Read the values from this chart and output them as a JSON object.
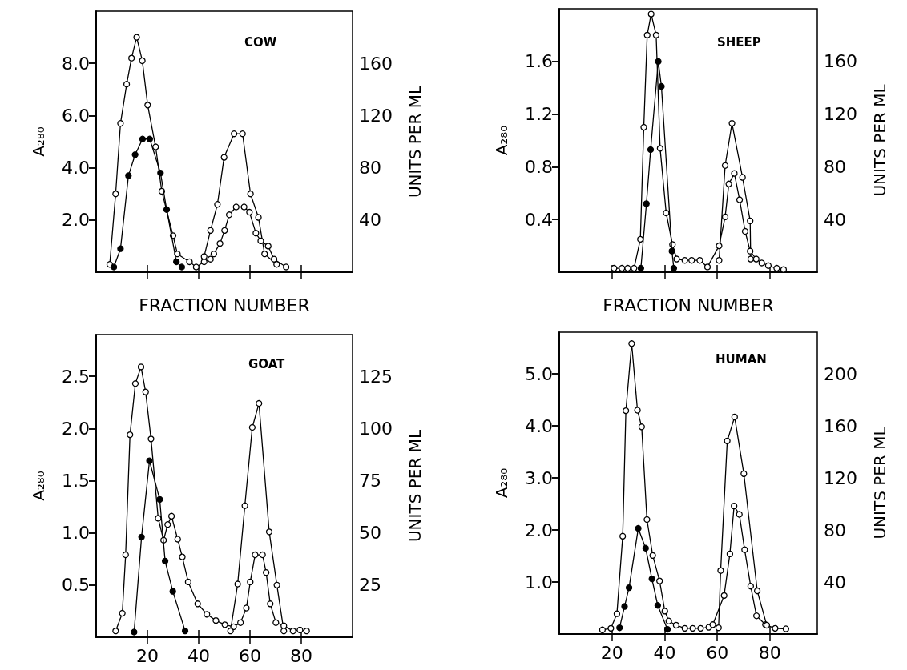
{
  "chart_data": [
    {
      "type": "line",
      "title": "COW",
      "xlabel": "FRACTION NUMBER",
      "ylabel": "A₂₈₀",
      "y2label": "UNITS PER ML",
      "marker": "circle",
      "tick_labels": "y",
      "xlim": [
        0,
        100
      ],
      "xticks": [
        {
          "value": 20,
          "label": null
        },
        {
          "value": 40,
          "label": null
        },
        {
          "value": 60,
          "label": null
        },
        {
          "value": 80,
          "label": null
        }
      ],
      "ylim": [
        0,
        10
      ],
      "yticks": [
        {
          "value": 2,
          "label": "2.0"
        },
        {
          "value": 4,
          "label": "4.0"
        },
        {
          "value": 6,
          "label": "6.0"
        },
        {
          "value": 8,
          "label": "8.0"
        }
      ],
      "y2lim": [
        0,
        200
      ],
      "y2ticks": [
        40,
        80,
        120,
        160
      ],
      "series": [
        {
          "color": "#ffffff",
          "x": [
            5.3,
            7.6,
            9.5,
            11.9,
            13.8,
            15.8,
            18,
            20.1,
            23.2,
            25.6,
            30,
            31.7,
            36.4,
            39,
            42.1,
            44.6,
            45.9,
            48.3,
            50.1,
            51.9,
            54.6,
            57.7,
            59.8,
            62.3,
            64.2,
            67.1,
            69.4,
            74.1
          ],
          "values": [
            0.3,
            3.0,
            5.7,
            7.2,
            8.2,
            9.0,
            8.1,
            6.4,
            4.8,
            3.1,
            1.4,
            0.7,
            0.4,
            0.2,
            0.4,
            0.5,
            0.7,
            1.1,
            1.6,
            2.2,
            2.5,
            2.5,
            2.3,
            1.5,
            1.2,
            1.0,
            0.5,
            0.2
          ]
        },
        {
          "color": "#ffffff",
          "x": [
            42.1,
            44.6,
            47.3,
            49.9,
            53.8,
            57.1,
            60.2,
            63.3,
            65.7,
            70.4
          ],
          "values": [
            0.6,
            1.6,
            2.6,
            4.4,
            5.3,
            5.3,
            3.0,
            2.1,
            0.7,
            0.3
          ]
        },
        {
          "color": "#000000",
          "x": [
            6.9,
            9.5,
            12.6,
            15.2,
            18.1,
            20.9,
            25.1,
            27.5,
            31.3,
            33.4
          ],
          "values": [
            0.2,
            0.9,
            3.7,
            4.5,
            5.1,
            5.1,
            3.8,
            2.4,
            0.4,
            0.2
          ]
        }
      ]
    },
    {
      "type": "line",
      "title": "SHEEP",
      "xlabel": "FRACTION NUMBER",
      "ylabel": "A₂₈₀",
      "y2label": "UNITS PER ML",
      "marker": "circle",
      "tick_labels": "y",
      "xlim": [
        0,
        98
      ],
      "xticks": [
        {
          "value": 20,
          "label": null
        },
        {
          "value": 40,
          "label": null
        },
        {
          "value": 60,
          "label": null
        },
        {
          "value": 80,
          "label": null
        }
      ],
      "ylim": [
        0,
        2.0
      ],
      "yticks": [
        0.4,
        0.8,
        1.2,
        1.6
      ],
      "y2lim": [
        0,
        200
      ],
      "y2ticks": [
        40,
        80,
        120,
        160
      ],
      "series": [
        {
          "color": "#ffffff",
          "x": [
            20.8,
            23.8,
            26,
            28.4,
            30.8,
            32.1,
            33.4,
            34.9,
            36.8,
            38.3,
            40.6,
            43.0,
            44.6,
            47.7,
            50.3,
            53.4,
            56.3,
            60.7,
            63.0,
            64.4,
            66.5,
            68.5,
            70.6,
            72.5,
            74.8,
            76.9,
            79.4,
            82.6,
            85.2
          ],
          "values": [
            0.03,
            0.03,
            0.03,
            0.03,
            0.25,
            1.1,
            1.8,
            1.96,
            1.8,
            0.94,
            0.45,
            0.21,
            0.1,
            0.09,
            0.09,
            0.09,
            0.04,
            0.2,
            0.42,
            0.67,
            0.75,
            0.55,
            0.31,
            0.16,
            0.1,
            0.07,
            0.05,
            0.03,
            0.02
          ]
        },
        {
          "color": "#000000",
          "x": [
            31.0,
            33.1,
            34.7,
            37.6,
            38.8,
            42.8,
            43.5
          ],
          "values": [
            0.03,
            0.52,
            0.93,
            1.6,
            1.41,
            0.16,
            0.03
          ]
        },
        {
          "color": "#ffffff",
          "x": [
            60.7,
            63.0,
            65.6,
            69.6,
            72.5,
            72.7
          ],
          "values": [
            0.09,
            0.81,
            1.13,
            0.72,
            0.39,
            0.1
          ]
        }
      ]
    },
    {
      "type": "line",
      "title": "GOAT",
      "ylabel": "A₂₈₀",
      "y2label": "UNITS PER ML",
      "marker": "circle",
      "xlim": [
        0,
        100
      ],
      "xticks": [
        20,
        40,
        60,
        80
      ],
      "ylim": [
        0,
        2.9
      ],
      "yticks": [
        0.5,
        {
          "value": 1,
          "label": "1.0"
        },
        1.5,
        {
          "value": 2,
          "label": "2.0"
        },
        2.5
      ],
      "y2lim": [
        0,
        145
      ],
      "y2ticks": [
        25,
        50,
        75,
        100,
        125
      ],
      "series": [
        {
          "color": "#ffffff",
          "x": [
            7.6,
            10.2,
            11.5,
            13.2,
            15.3,
            17.5,
            19.3,
            21.4,
            24.2,
            26.3,
            27.9,
            29.4,
            31.8,
            33.6,
            35.9,
            39.6,
            43.2,
            46.7,
            50.2,
            53.6,
            56.3,
            58.6,
            60.1,
            62.0,
            64.9,
            66.3,
            67.9,
            70.1,
            73.2,
            76.8,
            79.5,
            82.1
          ],
          "values": [
            0.06,
            0.23,
            0.79,
            1.94,
            2.43,
            2.59,
            2.35,
            1.9,
            1.14,
            0.93,
            1.08,
            1.16,
            0.94,
            0.77,
            0.53,
            0.32,
            0.22,
            0.16,
            0.12,
            0.1,
            0.14,
            0.28,
            0.53,
            0.79,
            0.79,
            0.62,
            0.32,
            0.14,
            0.11,
            0.06,
            0.07,
            0.06
          ]
        },
        {
          "color": "#000000",
          "x": [
            14.8,
            17.7,
            20.8,
            24.8,
            26.9,
            29.9,
            34.7
          ],
          "values": [
            0.05,
            0.96,
            1.69,
            1.32,
            0.73,
            0.44,
            0.06
          ]
        },
        {
          "color": "#ffffff",
          "x": [
            52.4,
            55.2,
            58.0,
            60.9,
            63.5,
            67.5,
            70.5,
            73.2
          ],
          "values": [
            0.06,
            0.51,
            1.26,
            2.01,
            2.24,
            1.01,
            0.5,
            0.06
          ]
        }
      ]
    },
    {
      "type": "line",
      "title": "HUMAN",
      "ylabel": "A₂₈₀",
      "y2label": "UNITS PER ML",
      "marker": "circle",
      "xlim": [
        0,
        98
      ],
      "xticks": [
        20,
        40,
        60,
        80
      ],
      "ylim": [
        0,
        5.8
      ],
      "yticks": [
        {
          "value": 1,
          "label": "1.0"
        },
        {
          "value": 2,
          "label": "2.0"
        },
        {
          "value": 3,
          "label": "3.0"
        },
        {
          "value": 4,
          "label": "4.0"
        },
        {
          "value": 5,
          "label": "5.0"
        }
      ],
      "y2lim": [
        0,
        232
      ],
      "y2ticks": [
        40,
        80,
        120,
        160,
        200
      ],
      "series": [
        {
          "color": "#ffffff",
          "x": [
            16.4,
            19.6,
            21.9,
            24.1,
            25.3,
            27.5,
            29.7,
            31.3,
            33.3,
            35.5,
            38.1,
            40.1,
            41.6,
            44.4,
            47.7,
            50.7,
            53.7,
            56.8,
            58.3,
            62.6,
            64.8,
            66.4,
            68.4,
            70.4,
            72.7,
            74.9,
            78.3,
            82.0,
            86.1
          ],
          "values": [
            0.08,
            0.11,
            0.39,
            1.88,
            4.29,
            5.58,
            4.3,
            3.98,
            2.2,
            1.51,
            1.02,
            0.44,
            0.25,
            0.17,
            0.11,
            0.11,
            0.11,
            0.13,
            0.18,
            0.74,
            1.54,
            2.46,
            2.3,
            1.62,
            0.92,
            0.35,
            0.18,
            0.11,
            0.1
          ]
        },
        {
          "color": "#ffffff",
          "x": [
            60.5,
            61.3,
            63.8,
            66.6,
            70.1,
            75.2,
            78.8
          ],
          "values": [
            0.12,
            1.22,
            3.71,
            4.17,
            3.08,
            0.83,
            0.17
          ]
        },
        {
          "color": "#000000",
          "x": [
            22.9,
            24.8,
            26.5,
            30.0,
            32.8,
            35.2,
            37.4,
            41.1
          ],
          "values": [
            0.12,
            0.53,
            0.89,
            2.03,
            1.65,
            1.06,
            0.55,
            0.09
          ]
        }
      ]
    }
  ]
}
